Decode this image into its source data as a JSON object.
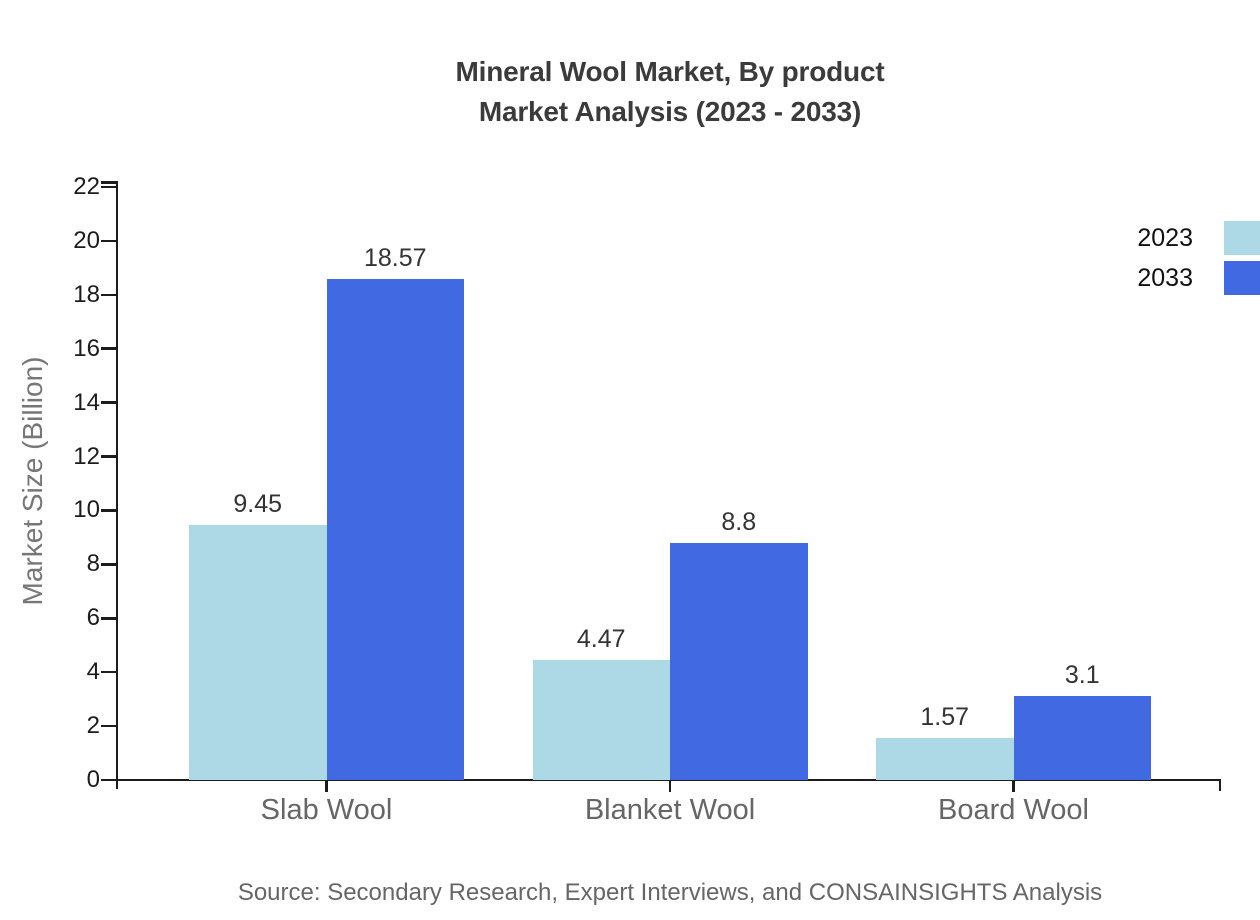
{
  "title": {
    "line1": "Mineral Wool Market, By product",
    "line2": "Market Analysis (2023 - 2033)"
  },
  "source": "Source: Secondary Research, Expert Interviews, and CONSAINSIGHTS Analysis",
  "chart_data": {
    "type": "bar",
    "title": "Mineral Wool Market, By product Market Analysis (2023 - 2033)",
    "categories": [
      "Slab Wool",
      "Blanket Wool",
      "Board Wool"
    ],
    "series": [
      {
        "name": "2023",
        "color": "#add8e6",
        "values": [
          9.45,
          4.47,
          1.57
        ]
      },
      {
        "name": "2033",
        "color": "#4169e1",
        "values": [
          18.57,
          8.8,
          3.1
        ]
      }
    ],
    "xlabel": "",
    "ylabel": "Market Size (Billion)",
    "ylim": [
      0,
      22
    ],
    "ytick_step": 2,
    "grid": false,
    "legend_position": "right",
    "value_labels": true
  },
  "colors": {
    "axis": "#1c1c1c",
    "tick_label": "#1c1c1c",
    "value_label": "#333333",
    "category_label": "#666666",
    "y_axis_title": "#777777",
    "title": "#3b3b3b",
    "source": "#666666",
    "series_2023": "#add8e6",
    "series_2033": "#4169e1"
  }
}
